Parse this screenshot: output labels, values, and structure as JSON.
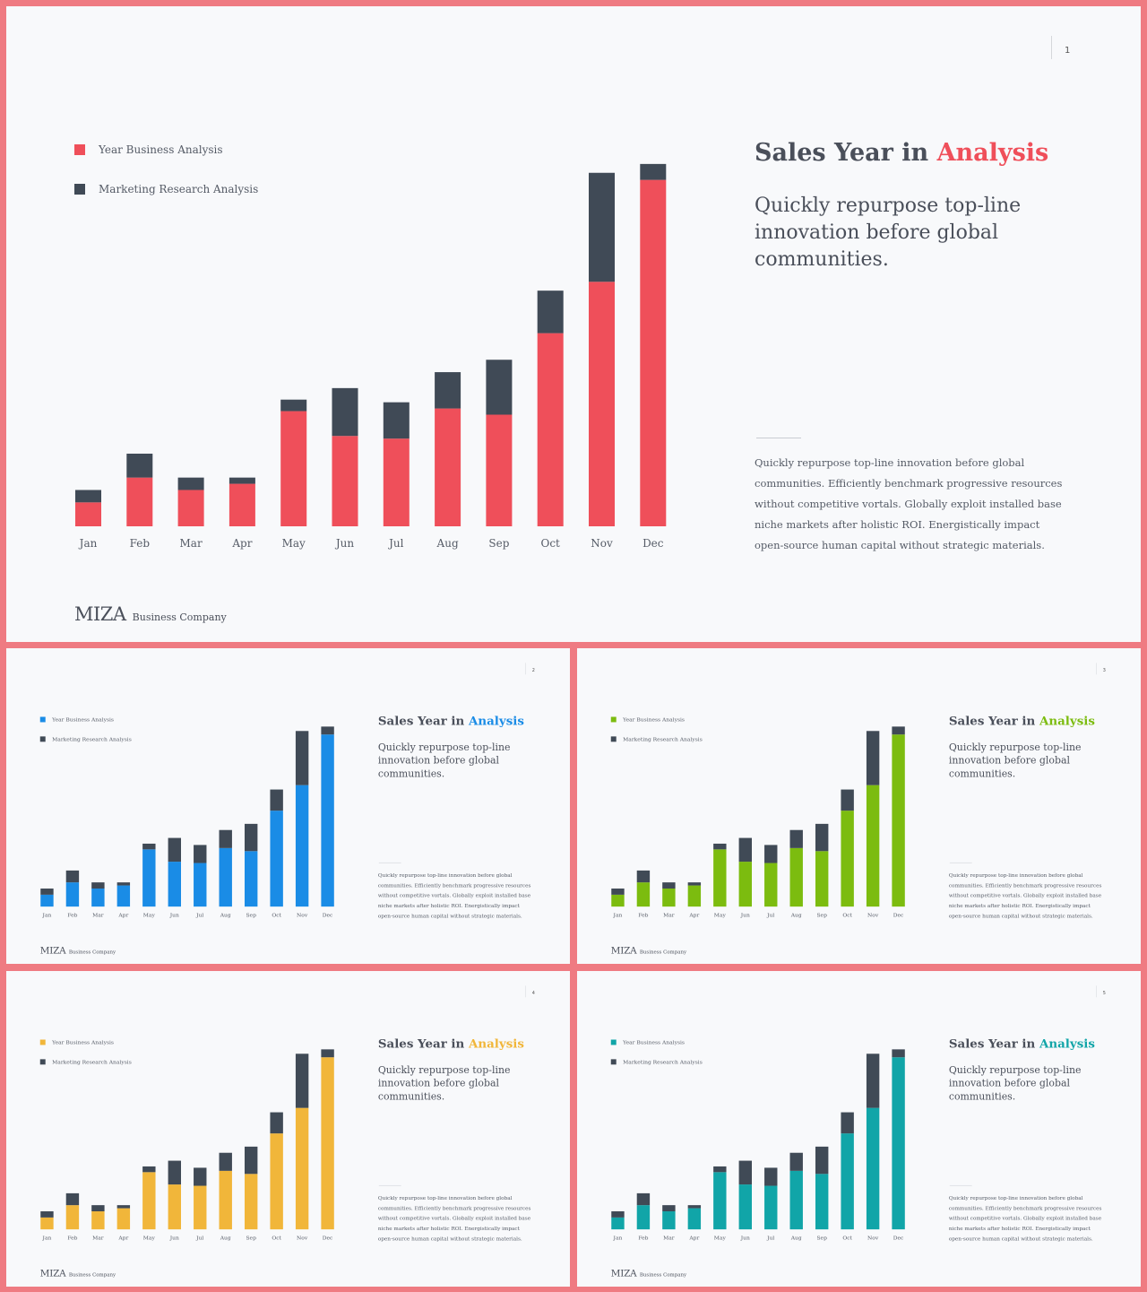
{
  "dark_color": "#404a56",
  "common": {
    "title_prefix": "Sales Year in",
    "title_highlight": "Analysis",
    "subtitle": "Quickly repurpose top-line innovation before global communities.",
    "body": "Quickly repurpose top-line innovation before global communities. Efficiently benchmark progressive resources without competitive vortals. Globally exploit installed base niche markets after holistic ROI. Energistically impact open-source human capital without strategic materials.",
    "brand_name": "MIZA",
    "brand_sub": "Business Company",
    "legend": [
      "Year Business Analysis",
      "Marketing Research Analysis"
    ]
  },
  "slides": [
    {
      "page": "1",
      "accent": "#ef4f5a"
    },
    {
      "page": "2",
      "accent": "#1a8ce6"
    },
    {
      "page": "3",
      "accent": "#7cbc0f"
    },
    {
      "page": "4",
      "accent": "#f1b63a"
    },
    {
      "page": "5",
      "accent": "#11a5a8"
    }
  ],
  "chart_data": {
    "type": "bar",
    "stacked": true,
    "categories": [
      "Jan",
      "Feb",
      "Mar",
      "Apr",
      "May",
      "Jun",
      "Jul",
      "Aug",
      "Sep",
      "Oct",
      "Nov",
      "Dec"
    ],
    "series": [
      {
        "name": "Year Business Analysis",
        "values": [
          27,
          55,
          41,
          48,
          130,
          102,
          99,
          133,
          126,
          218,
          276,
          391
        ]
      },
      {
        "name": "Marketing Research Analysis",
        "values": [
          14,
          27,
          14,
          7,
          13,
          54,
          41,
          41,
          62,
          48,
          123,
          18
        ]
      }
    ],
    "ylim": [
      0,
      420
    ],
    "legend_position": "top-left",
    "grid": false
  }
}
